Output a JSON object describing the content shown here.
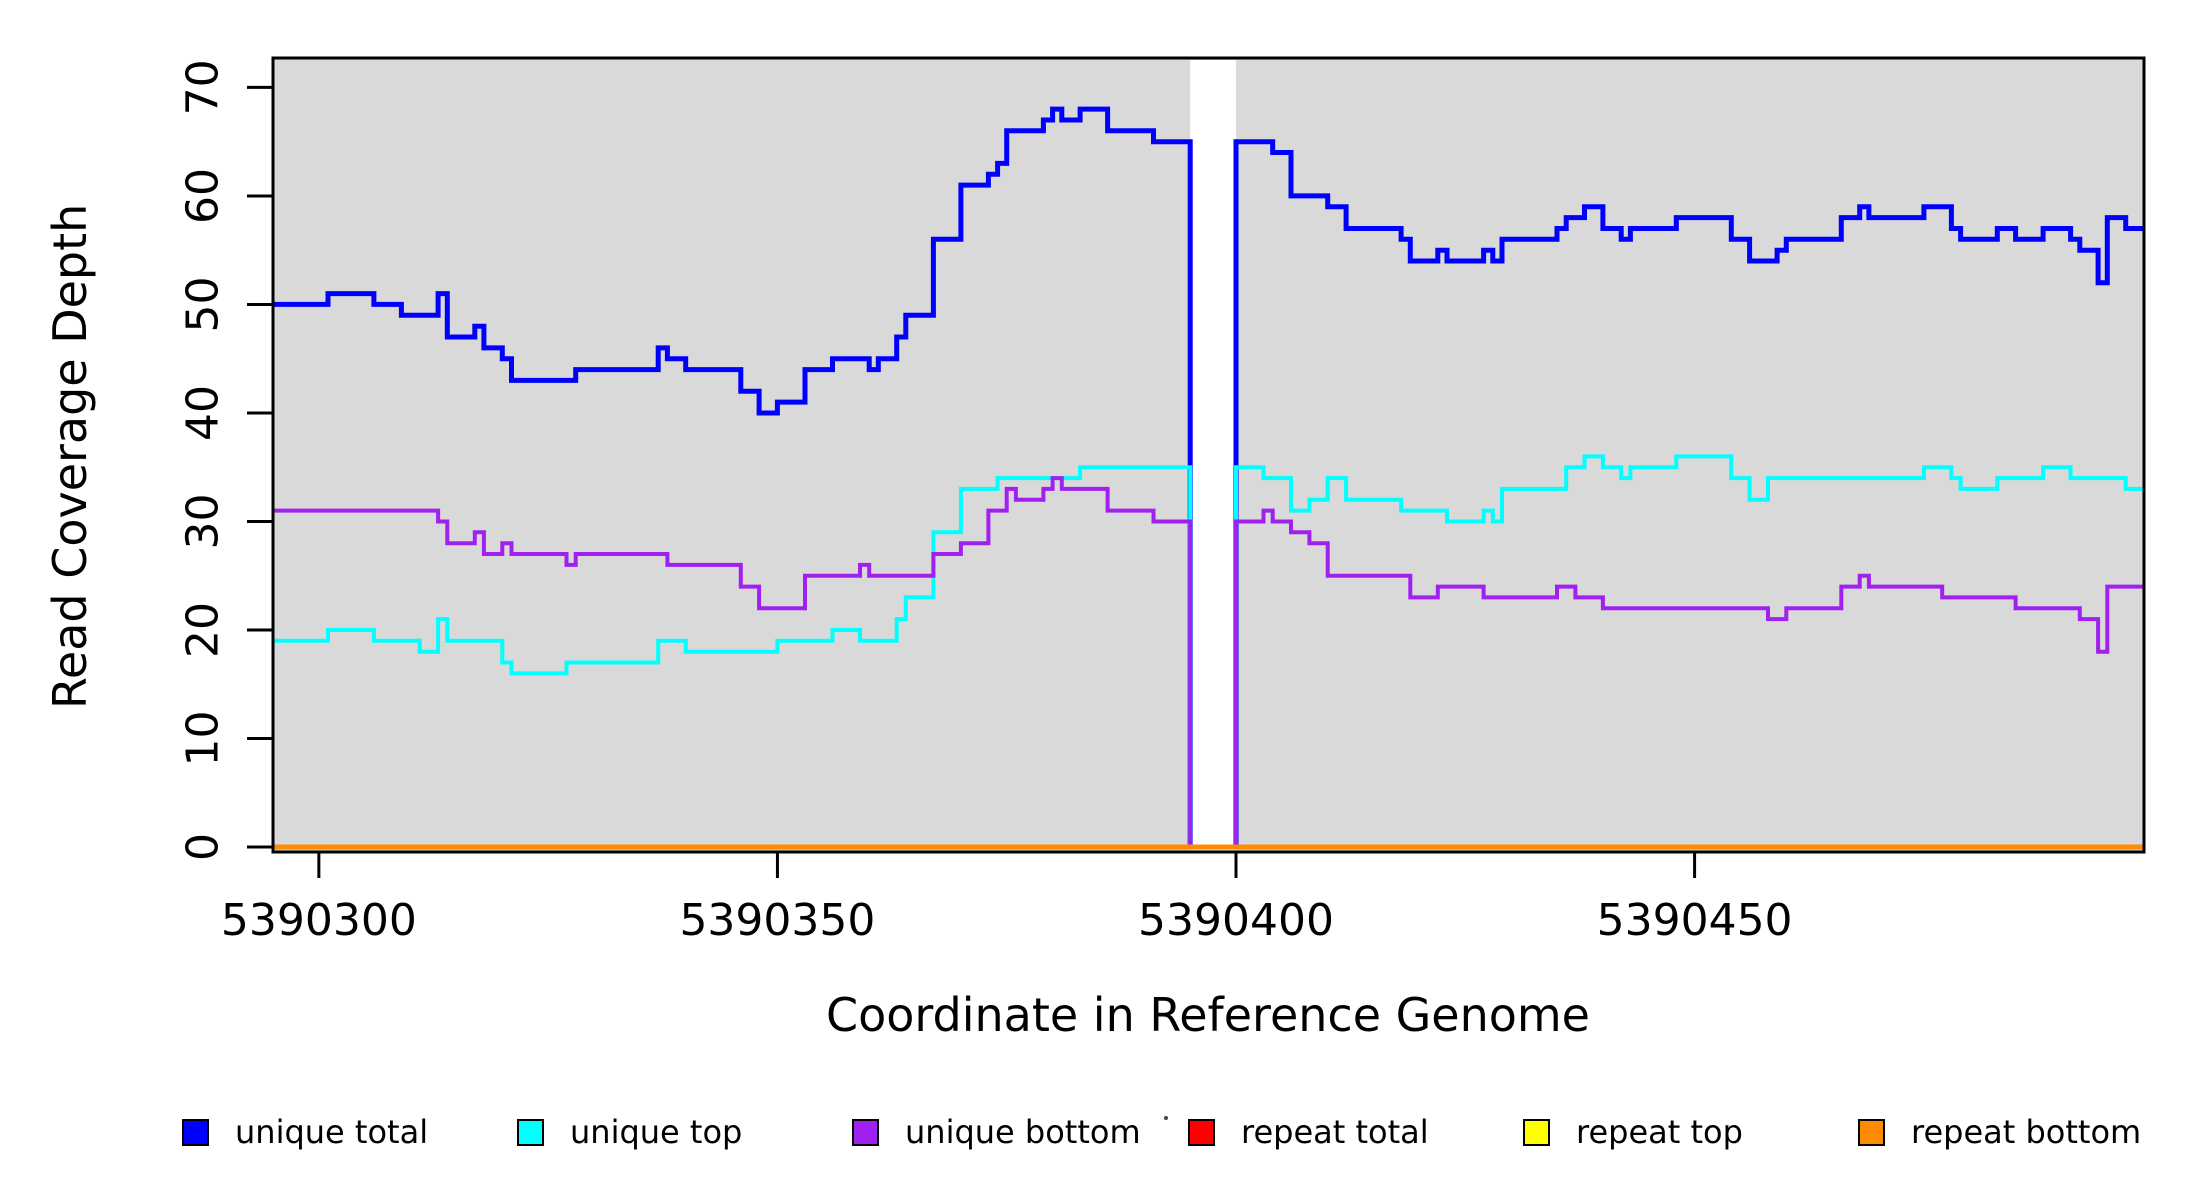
{
  "chart_data": {
    "type": "line",
    "subtype": "step",
    "title": "",
    "xlabel": "Coordinate in Reference Genome",
    "ylabel": "Read Coverage Depth",
    "xlim": [
      5390295,
      5390499
    ],
    "ylim": [
      0,
      72
    ],
    "x_ticks": [
      5390300,
      5390350,
      5390400,
      5390450
    ],
    "y_ticks": [
      0,
      10,
      20,
      30,
      40,
      50,
      60,
      70
    ],
    "grid": false,
    "plot_bg": "#D9D9D9",
    "axis_color": "#000000",
    "legend_position": "bottom",
    "gap_region": {
      "x_start": 5390395,
      "x_end": 5390400,
      "color": "#FFFFFF"
    },
    "series": [
      {
        "name": "unique total",
        "color": "#0000FF",
        "width": 5,
        "points": [
          [
            5390295,
            50
          ],
          [
            5390301,
            51
          ],
          [
            5390306,
            50
          ],
          [
            5390309,
            49
          ],
          [
            5390313,
            51
          ],
          [
            5390314,
            47
          ],
          [
            5390317,
            48
          ],
          [
            5390318,
            46
          ],
          [
            5390320,
            45
          ],
          [
            5390321,
            43
          ],
          [
            5390328,
            44
          ],
          [
            5390337,
            46
          ],
          [
            5390338,
            45
          ],
          [
            5390340,
            44
          ],
          [
            5390346,
            42
          ],
          [
            5390348,
            40
          ],
          [
            5390350,
            41
          ],
          [
            5390353,
            44
          ],
          [
            5390356,
            45
          ],
          [
            5390360,
            44
          ],
          [
            5390361,
            45
          ],
          [
            5390363,
            47
          ],
          [
            5390364,
            49
          ],
          [
            5390367,
            56
          ],
          [
            5390370,
            61
          ],
          [
            5390373,
            62
          ],
          [
            5390374,
            63
          ],
          [
            5390375,
            66
          ],
          [
            5390379,
            67
          ],
          [
            5390380,
            68
          ],
          [
            5390381,
            67
          ],
          [
            5390383,
            68
          ],
          [
            5390386,
            66
          ],
          [
            5390391,
            65
          ],
          [
            5390395,
            0
          ],
          [
            5390400,
            65
          ],
          [
            5390404,
            64
          ],
          [
            5390406,
            60
          ],
          [
            5390410,
            59
          ],
          [
            5390412,
            57
          ],
          [
            5390418,
            56
          ],
          [
            5390419,
            54
          ],
          [
            5390422,
            55
          ],
          [
            5390423,
            54
          ],
          [
            5390427,
            55
          ],
          [
            5390428,
            54
          ],
          [
            5390429,
            56
          ],
          [
            5390435,
            57
          ],
          [
            5390436,
            58
          ],
          [
            5390438,
            59
          ],
          [
            5390440,
            57
          ],
          [
            5390442,
            56
          ],
          [
            5390443,
            57
          ],
          [
            5390448,
            58
          ],
          [
            5390454,
            56
          ],
          [
            5390456,
            54
          ],
          [
            5390459,
            55
          ],
          [
            5390460,
            56
          ],
          [
            5390466,
            58
          ],
          [
            5390468,
            59
          ],
          [
            5390469,
            58
          ],
          [
            5390475,
            59
          ],
          [
            5390478,
            57
          ],
          [
            5390479,
            56
          ],
          [
            5390483,
            57
          ],
          [
            5390485,
            56
          ],
          [
            5390488,
            57
          ],
          [
            5390491,
            56
          ],
          [
            5390492,
            55
          ],
          [
            5390494,
            52
          ],
          [
            5390495,
            58
          ],
          [
            5390497,
            57
          ]
        ]
      },
      {
        "name": "unique top",
        "color": "#00FFFF",
        "width": 4,
        "points": [
          [
            5390295,
            19
          ],
          [
            5390301,
            20
          ],
          [
            5390306,
            19
          ],
          [
            5390311,
            18
          ],
          [
            5390313,
            21
          ],
          [
            5390314,
            19
          ],
          [
            5390320,
            17
          ],
          [
            5390321,
            16
          ],
          [
            5390327,
            17
          ],
          [
            5390337,
            19
          ],
          [
            5390340,
            18
          ],
          [
            5390350,
            19
          ],
          [
            5390356,
            20
          ],
          [
            5390359,
            19
          ],
          [
            5390363,
            21
          ],
          [
            5390364,
            23
          ],
          [
            5390367,
            29
          ],
          [
            5390370,
            33
          ],
          [
            5390374,
            34
          ],
          [
            5390383,
            35
          ],
          [
            5390395,
            0
          ],
          [
            5390400,
            35
          ],
          [
            5390403,
            34
          ],
          [
            5390406,
            31
          ],
          [
            5390408,
            32
          ],
          [
            5390410,
            34
          ],
          [
            5390412,
            32
          ],
          [
            5390418,
            31
          ],
          [
            5390423,
            30
          ],
          [
            5390427,
            31
          ],
          [
            5390428,
            30
          ],
          [
            5390429,
            33
          ],
          [
            5390436,
            35
          ],
          [
            5390438,
            36
          ],
          [
            5390440,
            35
          ],
          [
            5390442,
            34
          ],
          [
            5390443,
            35
          ],
          [
            5390448,
            36
          ],
          [
            5390454,
            34
          ],
          [
            5390456,
            32
          ],
          [
            5390458,
            34
          ],
          [
            5390475,
            35
          ],
          [
            5390478,
            34
          ],
          [
            5390479,
            33
          ],
          [
            5390483,
            34
          ],
          [
            5390488,
            35
          ],
          [
            5390491,
            34
          ],
          [
            5390497,
            33
          ]
        ]
      },
      {
        "name": "unique bottom",
        "color": "#A020F0",
        "width": 4,
        "points": [
          [
            5390295,
            31
          ],
          [
            5390313,
            30
          ],
          [
            5390314,
            28
          ],
          [
            5390317,
            29
          ],
          [
            5390318,
            27
          ],
          [
            5390320,
            28
          ],
          [
            5390321,
            27
          ],
          [
            5390327,
            26
          ],
          [
            5390328,
            27
          ],
          [
            5390338,
            26
          ],
          [
            5390346,
            24
          ],
          [
            5390348,
            22
          ],
          [
            5390353,
            25
          ],
          [
            5390359,
            26
          ],
          [
            5390360,
            25
          ],
          [
            5390367,
            27
          ],
          [
            5390370,
            28
          ],
          [
            5390373,
            31
          ],
          [
            5390375,
            33
          ],
          [
            5390376,
            32
          ],
          [
            5390379,
            33
          ],
          [
            5390380,
            34
          ],
          [
            5390381,
            33
          ],
          [
            5390386,
            31
          ],
          [
            5390391,
            30
          ],
          [
            5390395,
            0
          ],
          [
            5390400,
            30
          ],
          [
            5390403,
            31
          ],
          [
            5390404,
            30
          ],
          [
            5390406,
            29
          ],
          [
            5390408,
            28
          ],
          [
            5390410,
            25
          ],
          [
            5390419,
            23
          ],
          [
            5390422,
            24
          ],
          [
            5390427,
            23
          ],
          [
            5390435,
            24
          ],
          [
            5390437,
            23
          ],
          [
            5390440,
            22
          ],
          [
            5390458,
            21
          ],
          [
            5390460,
            22
          ],
          [
            5390466,
            24
          ],
          [
            5390468,
            25
          ],
          [
            5390469,
            24
          ],
          [
            5390477,
            23
          ],
          [
            5390485,
            22
          ],
          [
            5390492,
            21
          ],
          [
            5390494,
            18
          ],
          [
            5390495,
            24
          ]
        ]
      },
      {
        "name": "repeat total",
        "color": "#FF0000",
        "width": 4,
        "points": [
          [
            5390295,
            0
          ]
        ]
      },
      {
        "name": "repeat top",
        "color": "#FFFF00",
        "width": 4,
        "points": [
          [
            5390295,
            0
          ]
        ]
      },
      {
        "name": "repeat bottom",
        "color": "#FF8C00",
        "width": 5,
        "points": [
          [
            5390295,
            0
          ]
        ]
      }
    ]
  }
}
